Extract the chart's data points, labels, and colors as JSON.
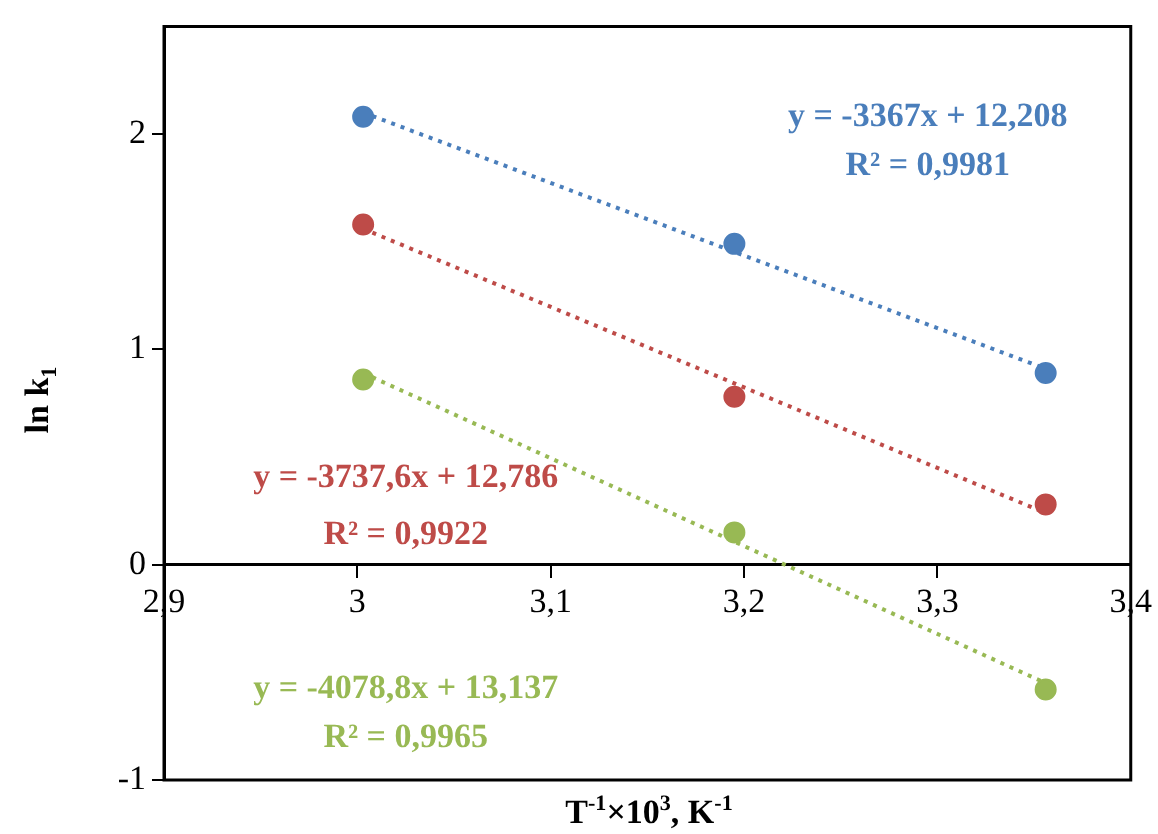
{
  "chart_data": {
    "type": "scatter",
    "xlabel": "T$^{-1}$×10$^{3}$, K$^{-1}$",
    "ylabel": "ln k$_{1}$",
    "xlim": [
      2.9,
      3.4
    ],
    "xticks": [
      {
        "value": 2.9,
        "label": "2,9"
      },
      3,
      {
        "value": 3.1,
        "label": "3,1"
      },
      {
        "value": 3.2,
        "label": "3,2"
      },
      {
        "value": 3.3,
        "label": "3,3"
      },
      {
        "value": 3.4,
        "label": "3,4"
      }
    ],
    "ylim": [
      -1,
      2.5
    ],
    "yticks": [
      -1,
      0,
      1,
      2
    ],
    "grid": false,
    "legend": false,
    "series": [
      {
        "type": "scatter",
        "color": "#4a7ebb",
        "marker": "circle",
        "x": [
          3.003,
          3.195,
          3.356
        ],
        "values": [
          2.08,
          1.49,
          0.89
        ]
      },
      {
        "type": "scatter",
        "color": "#be4b48",
        "marker": "circle",
        "x": [
          3.003,
          3.195,
          3.356
        ],
        "values": [
          1.58,
          0.78,
          0.28
        ]
      },
      {
        "type": "scatter",
        "color": "#98b954",
        "marker": "circle",
        "x": [
          3.003,
          3.195,
          3.356
        ],
        "values": [
          0.86,
          0.15,
          -0.58
        ]
      },
      {
        "type": "line",
        "color": "#4a7ebb",
        "marker": "none",
        "line_style": "dotted",
        "x": [
          3.003,
          3.356
        ],
        "values": [
          2.1,
          0.91
        ]
      },
      {
        "type": "line",
        "color": "#be4b48",
        "marker": "none",
        "line_style": "dotted",
        "x": [
          3.003,
          3.356
        ],
        "values": [
          1.56,
          0.24
        ]
      },
      {
        "type": "line",
        "color": "#98b954",
        "marker": "none",
        "line_style": "dotted",
        "x": [
          3.003,
          3.356
        ],
        "values": [
          0.89,
          -0.55
        ]
      }
    ],
    "annotations": [
      "y = -3367x + 12,208",
      "R² = 0,9981",
      "y = -3737,6x + 12,786",
      "R² = 0,9922",
      "y = -4078,8x + 13,137",
      "R² = 0,9965"
    ]
  }
}
